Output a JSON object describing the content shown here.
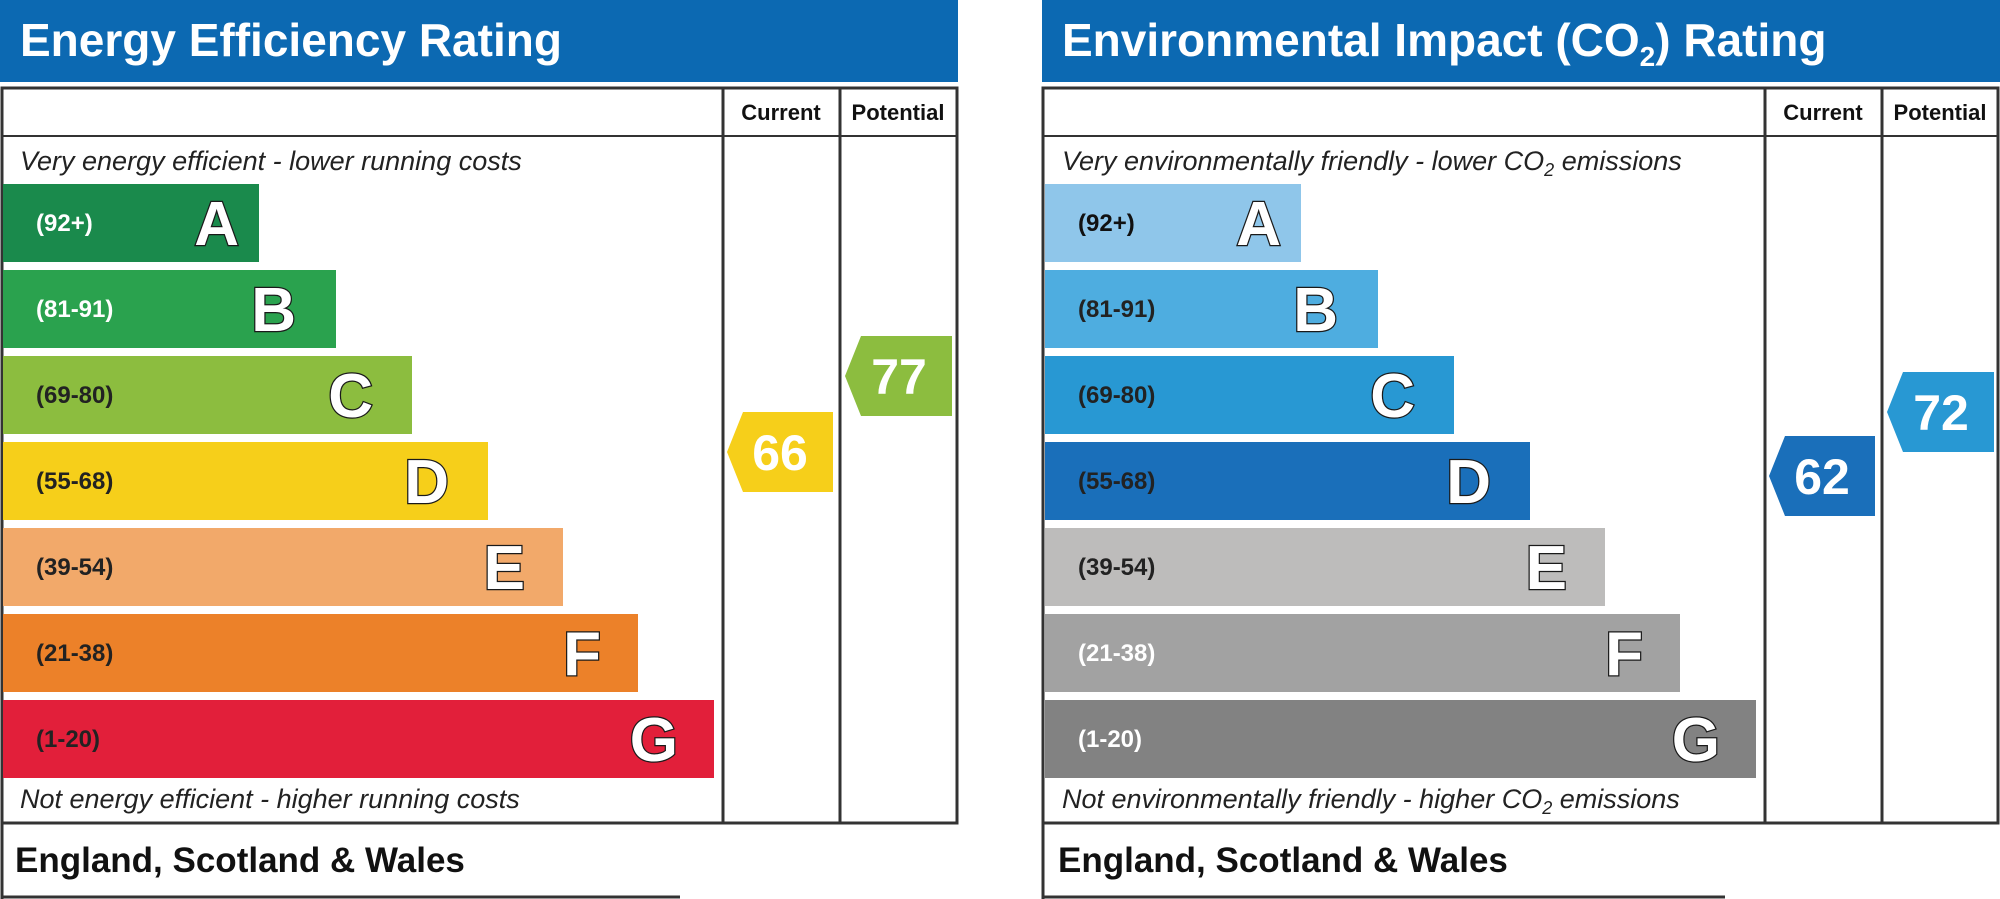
{
  "chart_data": [
    {
      "type": "bar",
      "title": "Energy Efficiency Rating",
      "header_current": "Current",
      "header_potential": "Potential",
      "top_note": "Very energy efficient - lower running costs",
      "bottom_note": "Not energy efficient - higher running costs",
      "region": "England, Scotland & Wales",
      "bands": [
        {
          "letter": "A",
          "range": "(92+)",
          "color": "#1a8a4c",
          "text_color": "#ffffff"
        },
        {
          "letter": "B",
          "range": "(81-91)",
          "color": "#2aa24e",
          "text_color": "#ffffff"
        },
        {
          "letter": "C",
          "range": "(69-80)",
          "color": "#8cbd3f",
          "text_color": "#222222"
        },
        {
          "letter": "D",
          "range": "(55-68)",
          "color": "#f6cf1a",
          "text_color": "#222222"
        },
        {
          "letter": "E",
          "range": "(39-54)",
          "color": "#f2a96a",
          "text_color": "#222222"
        },
        {
          "letter": "F",
          "range": "(21-38)",
          "color": "#ec8129",
          "text_color": "#222222"
        },
        {
          "letter": "G",
          "range": "(1-20)",
          "color": "#e21f3a",
          "text_color": "#222222"
        }
      ],
      "current": {
        "value": "66",
        "color": "#f6cf1a"
      },
      "potential": {
        "value": "77",
        "color": "#8cbd3f"
      }
    },
    {
      "type": "bar",
      "title_parts": [
        "Environmental Impact (CO",
        "2",
        ") Rating"
      ],
      "header_current": "Current",
      "header_potential": "Potential",
      "top_note_parts": [
        "Very environmentally friendly - lower CO",
        "2",
        " emissions"
      ],
      "bottom_note_parts": [
        "Not environmentally friendly - higher CO",
        "2",
        " emissions"
      ],
      "region": "England, Scotland & Wales",
      "bands": [
        {
          "letter": "A",
          "range": "(92+)",
          "color": "#8fc6ea",
          "text_color": "#111111"
        },
        {
          "letter": "B",
          "range": "(81-91)",
          "color": "#4eade0",
          "text_color": "#222222"
        },
        {
          "letter": "C",
          "range": "(69-80)",
          "color": "#2898d3",
          "text_color": "#222222"
        },
        {
          "letter": "D",
          "range": "(55-68)",
          "color": "#1a6fba",
          "text_color": "#222222"
        },
        {
          "letter": "E",
          "range": "(39-54)",
          "color": "#bdbcbb",
          "text_color": "#222222"
        },
        {
          "letter": "F",
          "range": "(21-38)",
          "color": "#a2a2a2",
          "text_color": "#ffffff"
        },
        {
          "letter": "G",
          "range": "(1-20)",
          "color": "#828282",
          "text_color": "#ffffff"
        }
      ],
      "current": {
        "value": "62",
        "color": "#1a6fba"
      },
      "potential": {
        "value": "72",
        "color": "#2898d3"
      }
    }
  ]
}
